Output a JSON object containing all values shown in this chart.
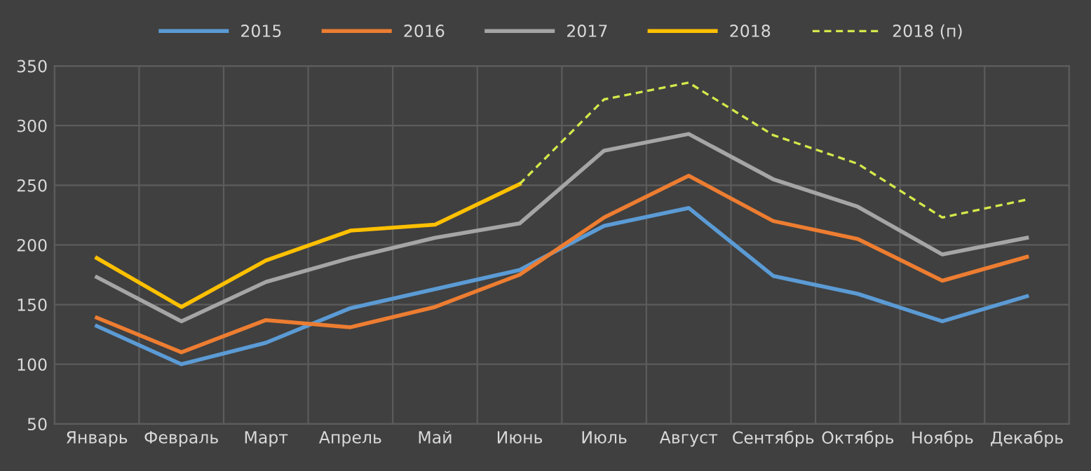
{
  "chart_data": {
    "type": "line",
    "categories": [
      "Январь",
      "Февраль",
      "Март",
      "Апрель",
      "Май",
      "Июнь",
      "Июль",
      "Август",
      "Сентябрь",
      "Октябрь",
      "Ноябрь",
      "Декабрь"
    ],
    "series": [
      {
        "name": "2015",
        "color": "#5b9bd5",
        "values": [
          132,
          100,
          118,
          147,
          163,
          179,
          216,
          231,
          174,
          159,
          136,
          157
        ]
      },
      {
        "name": "2016",
        "color": "#ed7d31",
        "values": [
          139,
          110,
          137,
          131,
          148,
          175,
          223,
          258,
          220,
          205,
          170,
          190
        ]
      },
      {
        "name": "2017",
        "color": "#a5a5a5",
        "values": [
          173,
          136,
          169,
          189,
          206,
          218,
          279,
          293,
          255,
          232,
          192,
          206
        ]
      },
      {
        "name": "2018",
        "color": "#ffc000",
        "values": [
          189,
          148,
          187,
          212,
          217,
          251,
          null,
          null,
          null,
          null,
          null,
          null
        ]
      },
      {
        "name": "2018 (п)",
        "color": "#d4e84a",
        "line_style": "dashed",
        "values": [
          null,
          null,
          null,
          null,
          null,
          251,
          322,
          336,
          292,
          268,
          223,
          238
        ]
      }
    ],
    "ylim": [
      50,
      350
    ],
    "yticks": [
      50,
      100,
      150,
      200,
      250,
      300,
      350
    ],
    "grid": true,
    "legend": "top",
    "marker": "none",
    "line_style": "solid"
  }
}
